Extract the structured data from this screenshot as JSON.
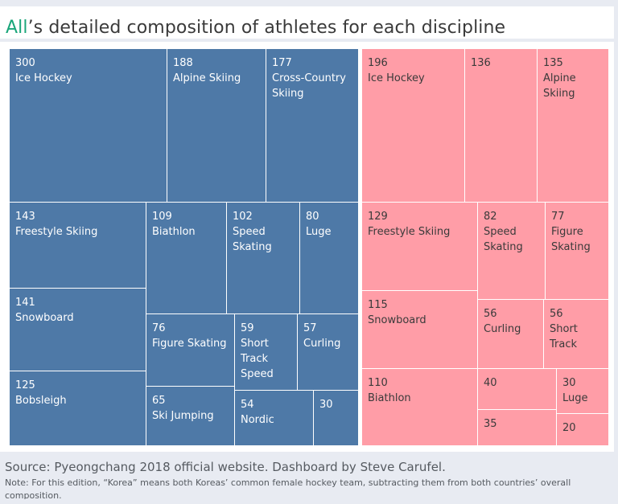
{
  "header": {
    "title_highlight": "All",
    "title_rest": "’s detailed composition of athletes for each discipline"
  },
  "colors": {
    "group_a": "#4e79a7",
    "group_b": "#ff9da7",
    "highlight": "#1aa67a"
  },
  "chart_data": {
    "type": "treemap",
    "groups": [
      {
        "key": "blue",
        "items": [
          {
            "value": 300,
            "label": "Ice Hockey"
          },
          {
            "value": 188,
            "label": "Alpine Skiing"
          },
          {
            "value": 177,
            "label": "Cross-Country Skiing"
          },
          {
            "value": 143,
            "label": "Freestyle Skiing"
          },
          {
            "value": 141,
            "label": "Snowboard"
          },
          {
            "value": 125,
            "label": "Bobsleigh"
          },
          {
            "value": 109,
            "label": "Biathlon"
          },
          {
            "value": 102,
            "label": "Speed Skating"
          },
          {
            "value": 80,
            "label": "Luge"
          },
          {
            "value": 76,
            "label": "Figure Skating"
          },
          {
            "value": 65,
            "label": "Ski Jumping"
          },
          {
            "value": 59,
            "label": "Short Track Speed"
          },
          {
            "value": 57,
            "label": "Curling"
          },
          {
            "value": 54,
            "label": "Nordic"
          },
          {
            "value": 30,
            "label": ""
          }
        ]
      },
      {
        "key": "pink",
        "items": [
          {
            "value": 196,
            "label": "Ice Hockey"
          },
          {
            "value": 136,
            "label": ""
          },
          {
            "value": 135,
            "label": "Alpine Skiing"
          },
          {
            "value": 129,
            "label": "Freestyle Skiing"
          },
          {
            "value": 115,
            "label": "Snowboard"
          },
          {
            "value": 110,
            "label": "Biathlon"
          },
          {
            "value": 82,
            "label": "Speed Skating"
          },
          {
            "value": 77,
            "label": "Figure Skating"
          },
          {
            "value": 56,
            "label": "Curling"
          },
          {
            "value": 56,
            "label": "Short Track"
          },
          {
            "value": 40,
            "label": ""
          },
          {
            "value": 35,
            "label": ""
          },
          {
            "value": 30,
            "label": "Luge"
          },
          {
            "value": 20,
            "label": ""
          }
        ]
      }
    ]
  },
  "footer": {
    "source": "Source: Pyeongchang 2018 official website. Dashboard by Steve Carufel.",
    "note": "Note: For this edition, “Korea” means both Koreas’ common female hockey team, subtracting them from both countries’ overall composition."
  }
}
